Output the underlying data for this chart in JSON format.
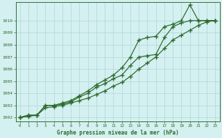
{
  "title": "Graphe pression niveau de la mer (hPa)",
  "x_values": [
    0,
    1,
    2,
    3,
    4,
    5,
    6,
    7,
    8,
    9,
    10,
    11,
    12,
    13,
    14,
    15,
    16,
    17,
    18,
    19,
    20,
    21,
    22,
    23
  ],
  "line_top": [
    1002.0,
    1002.2,
    1002.2,
    1003.0,
    1003.0,
    1003.2,
    1003.4,
    1003.8,
    1004.2,
    1004.7,
    1005.1,
    1005.5,
    1006.1,
    1007.0,
    1008.4,
    1008.6,
    1008.7,
    1009.5,
    1009.7,
    1010.0,
    1011.3,
    1010.0,
    1010.0,
    1010.0
  ],
  "line_mid": [
    1002.0,
    1002.2,
    1002.2,
    1003.0,
    1003.0,
    1003.1,
    1003.3,
    1003.7,
    1004.0,
    1004.5,
    1004.8,
    1005.2,
    1005.5,
    1006.3,
    1007.0,
    1007.1,
    1007.2,
    1008.6,
    1009.5,
    1009.8,
    1010.0,
    1010.0,
    1010.0,
    1010.0
  ],
  "line_bot": [
    1002.0,
    1002.1,
    1002.2,
    1002.8,
    1002.9,
    1003.0,
    1003.2,
    1003.4,
    1003.6,
    1003.9,
    1004.2,
    1004.6,
    1004.9,
    1005.4,
    1006.0,
    1006.5,
    1007.0,
    1007.7,
    1008.4,
    1008.8,
    1009.2,
    1009.6,
    1009.9,
    1010.0
  ],
  "ylim": [
    1001.7,
    1011.5
  ],
  "yticks": [
    1002,
    1003,
    1004,
    1005,
    1006,
    1007,
    1008,
    1009,
    1010
  ],
  "line_color": "#2d6a2d",
  "bg_color": "#d4f0f0",
  "grid_color": "#aed6d6",
  "tick_label_color": "#2d6a2d",
  "markersize": 4,
  "linewidth": 0.9
}
